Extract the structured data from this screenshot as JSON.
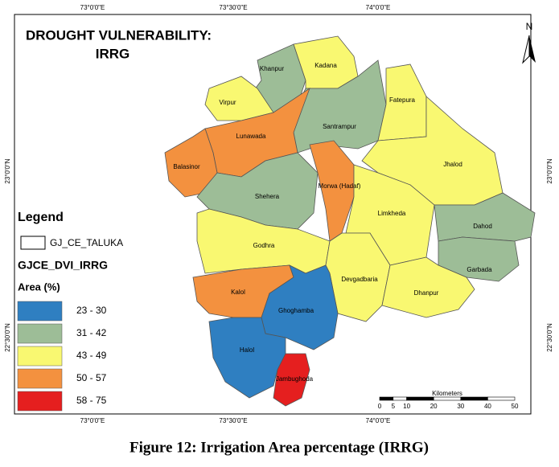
{
  "map": {
    "title": {
      "line1": "DROUGHT VULNERABILITY:",
      "line2": "IRRG"
    },
    "north": "N",
    "coords": {
      "top": [
        "73°0'0\"E",
        "73°30'0\"E",
        "74°0'0\"E"
      ],
      "bottom": [
        "73°0'0\"E",
        "73°30'0\"E",
        "74°0'0\"E"
      ],
      "left": [
        "23°0'0\"N",
        "22°30'0\"N"
      ],
      "right": [
        "23°0'0\"N",
        "22°30'0\"N"
      ]
    },
    "legend": {
      "title": "Legend",
      "boundary": "GJ_CE_TALUKA",
      "layer": "GJCE_DVI_IRRG",
      "field": "Area (%)",
      "classes": [
        {
          "label": "23 - 30",
          "color": "#2f7fc1"
        },
        {
          "label": "31 - 42",
          "color": "#9dbd97"
        },
        {
          "label": "43 - 49",
          "color": "#f9f871"
        },
        {
          "label": "50 - 57",
          "color": "#f3913f"
        },
        {
          "label": "58 - 75",
          "color": "#e51f1f"
        }
      ]
    },
    "talukas": [
      {
        "name": "Khanpur",
        "color": "#9dbd97"
      },
      {
        "name": "Kadana",
        "color": "#f9f871"
      },
      {
        "name": "Virpur",
        "color": "#f9f871"
      },
      {
        "name": "Santrampur",
        "color": "#9dbd97"
      },
      {
        "name": "Fatepura",
        "color": "#f9f871"
      },
      {
        "name": "Lunawada",
        "color": "#f3913f"
      },
      {
        "name": "Balasinor",
        "color": "#f3913f"
      },
      {
        "name": "Jhalod",
        "color": "#f9f871"
      },
      {
        "name": "Shehera",
        "color": "#9dbd97"
      },
      {
        "name": "Morwa (Hadaf)",
        "color": "#f3913f"
      },
      {
        "name": "Limkheda",
        "color": "#f9f871"
      },
      {
        "name": "Dahod",
        "color": "#9dbd97"
      },
      {
        "name": "Garbada",
        "color": "#9dbd97"
      },
      {
        "name": "Godhra",
        "color": "#f9f871"
      },
      {
        "name": "Devgadbaria",
        "color": "#f9f871"
      },
      {
        "name": "Dhanpur",
        "color": "#f9f871"
      },
      {
        "name": "Kalol",
        "color": "#f3913f"
      },
      {
        "name": "Ghoghamba",
        "color": "#2f7fc1"
      },
      {
        "name": "Halol",
        "color": "#2f7fc1"
      },
      {
        "name": "Jambughoda",
        "color": "#e51f1f"
      }
    ],
    "scale": {
      "title": "Kilometers",
      "ticks": [
        0,
        5,
        10,
        20,
        30,
        40,
        50
      ]
    }
  },
  "caption": "Figure 12: Irrigation Area percentage (IRRG)"
}
